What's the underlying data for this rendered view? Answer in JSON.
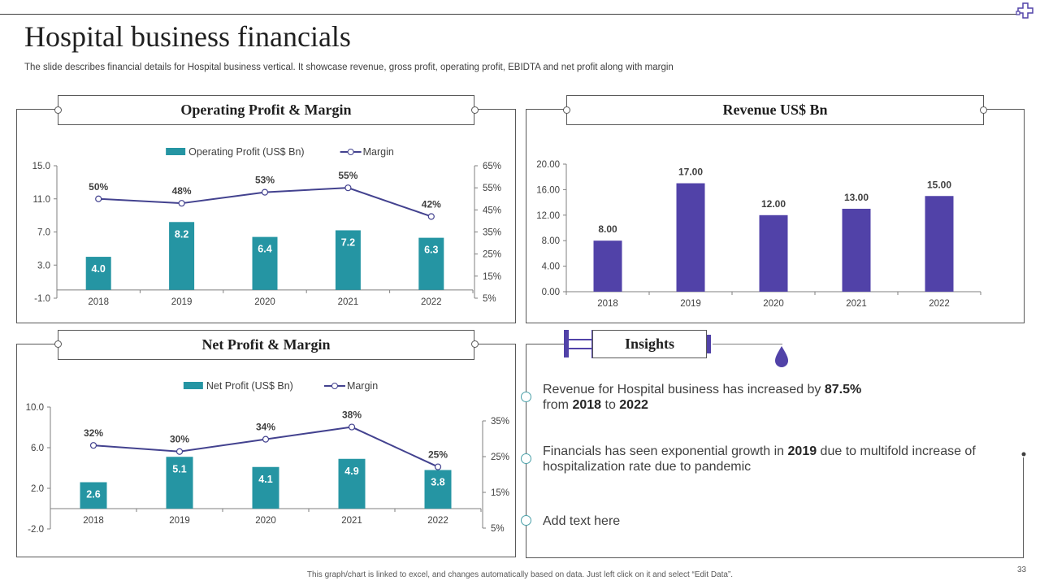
{
  "slide": {
    "title": "Hospital business financials",
    "subtitle": "The slide describes financial details for Hospital business vertical. It showcase revenue, gross profit, operating profit, EBIDTA and net profit along with margin",
    "footer": "This graph/chart is linked to excel, and changes automatically based on data. Just left click on it and select “Edit Data”.",
    "page_number": "33"
  },
  "colors": {
    "teal": "#2595a3",
    "purple": "#5142a8",
    "line": "#43428f",
    "ring": "#4aa0a8"
  },
  "panels": {
    "operating": {
      "title": "Operating Profit & Margin"
    },
    "revenue": {
      "title": "Revenue US$ Bn"
    },
    "net": {
      "title": "Net Profit & Margin"
    },
    "insights": {
      "title": "Insights"
    }
  },
  "chart_data": [
    {
      "type": "bar",
      "title": "Operating Profit & Margin",
      "categories": [
        "2018",
        "2019",
        "2020",
        "2021",
        "2022"
      ],
      "series": [
        {
          "name": "Operating Profit (US$ Bn)",
          "kind": "bar",
          "axis": "left",
          "values": [
            4.0,
            8.2,
            6.4,
            7.2,
            6.3
          ],
          "labels": [
            "4.0",
            "8.2",
            "6.4",
            "7.2",
            "6.3"
          ]
        },
        {
          "name": "Margin",
          "kind": "line",
          "axis": "right",
          "values": [
            50,
            48,
            53,
            55,
            42
          ],
          "labels": [
            "50%",
            "48%",
            "53%",
            "55%",
            "42%"
          ]
        }
      ],
      "y_left": {
        "min": -1.0,
        "max": 15.0,
        "ticks": [
          "15.0",
          "11.0",
          "7.0",
          "3.0",
          "-1.0"
        ]
      },
      "y_right": {
        "min": 5,
        "max": 65,
        "ticks": [
          "65%",
          "55%",
          "45%",
          "35%",
          "25%",
          "15%",
          "5%"
        ]
      },
      "legend": "top"
    },
    {
      "type": "bar",
      "title": "Revenue US$ Bn",
      "categories": [
        "2018",
        "2019",
        "2020",
        "2021",
        "2022"
      ],
      "series": [
        {
          "name": "Revenue",
          "kind": "bar",
          "axis": "left",
          "values": [
            8.0,
            17.0,
            12.0,
            13.0,
            15.0
          ],
          "labels": [
            "8.00",
            "17.00",
            "12.00",
            "13.00",
            "15.00"
          ]
        }
      ],
      "y_left": {
        "min": 0,
        "max": 20,
        "ticks": [
          "20.00",
          "16.00",
          "12.00",
          "8.00",
          "4.00",
          "0.00"
        ]
      }
    },
    {
      "type": "bar",
      "title": "Net Profit & Margin",
      "categories": [
        "2018",
        "2019",
        "2020",
        "2021",
        "2022"
      ],
      "series": [
        {
          "name": "Net Profit (US$ Bn)",
          "kind": "bar",
          "axis": "left",
          "values": [
            2.6,
            5.1,
            4.1,
            4.9,
            3.8
          ],
          "labels": [
            "2.6",
            "5.1",
            "4.1",
            "4.9",
            "3.8"
          ]
        },
        {
          "name": "Margin",
          "kind": "line",
          "axis": "right",
          "values": [
            32,
            30,
            34,
            38,
            25
          ],
          "labels": [
            "32%",
            "30%",
            "34%",
            "38%",
            "25%"
          ]
        }
      ],
      "y_left": {
        "min": -2.0,
        "max": 10.0,
        "ticks": [
          "10.0",
          "6.0",
          "2.0",
          "-2.0"
        ]
      },
      "y_right": {
        "min": 5,
        "max": 40,
        "ticks": [
          "35%",
          "25%",
          "15%",
          "5%"
        ]
      },
      "legend": "top"
    }
  ],
  "insights": {
    "item1": {
      "pre": "Revenue for Hospital business has increased by ",
      "b1": "87.5%",
      "mid": "from ",
      "b2": "2018",
      "to": " to ",
      "b3": "2022"
    },
    "item2": {
      "pre": "Financials has seen exponential growth in ",
      "b1": "2019",
      "post": " due to multifold increase of",
      "line2": "hospitalization rate due to pandemic"
    },
    "item3": {
      "text": "Add text here"
    }
  }
}
